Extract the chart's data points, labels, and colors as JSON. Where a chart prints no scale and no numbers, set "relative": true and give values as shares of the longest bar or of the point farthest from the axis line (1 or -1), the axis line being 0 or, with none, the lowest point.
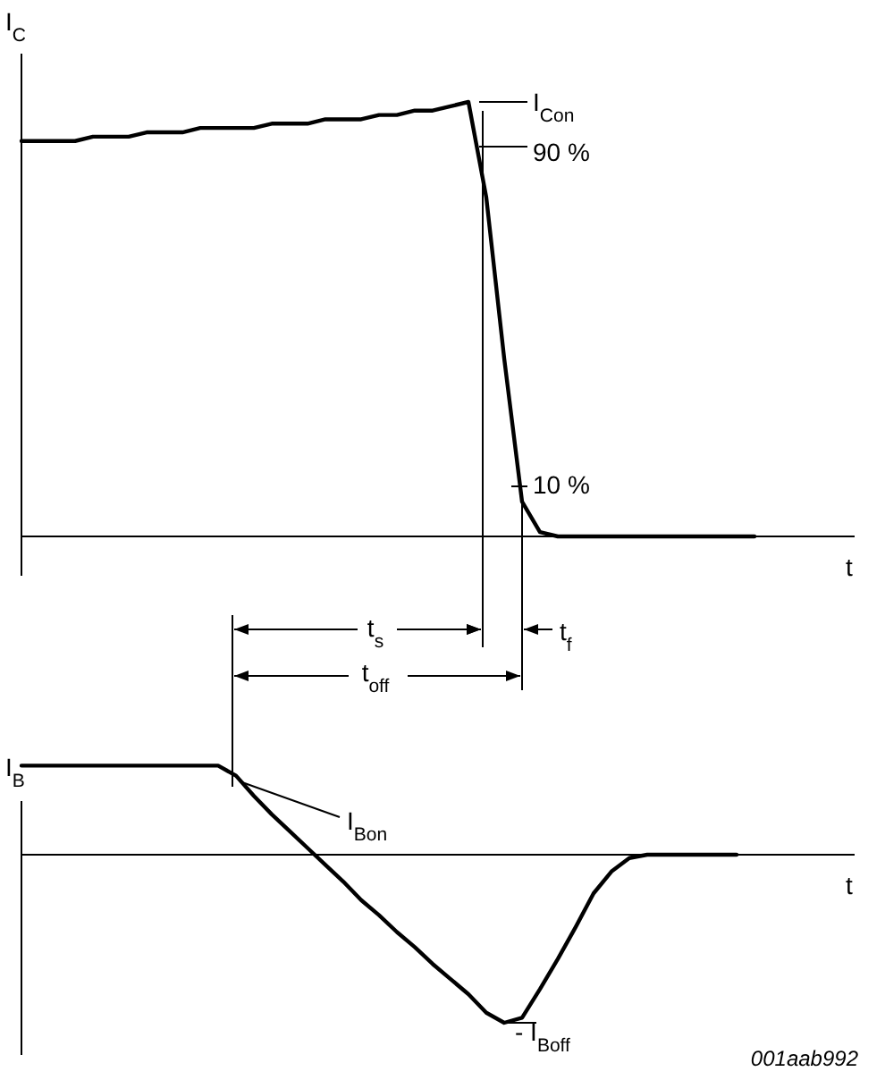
{
  "chart_data": [
    {
      "type": "line",
      "ylabel": "I$_{C}$",
      "xlabel": "t",
      "relative": true,
      "categories": [
        null,
        null,
        null,
        null,
        null,
        null,
        null,
        null,
        null,
        null,
        null,
        null,
        null,
        null,
        null,
        null,
        null,
        null,
        null,
        null,
        null,
        null,
        null,
        null,
        null,
        null,
        null,
        null,
        null,
        null,
        null,
        null,
        null,
        null,
        null,
        null,
        null,
        null,
        null,
        null,
        null,
        null,
        null,
        null,
        null,
        null,
        null
      ],
      "series": [
        {
          "color": "#000000",
          "values": [
            0.91,
            0.91,
            0.91,
            0.91,
            0.92,
            0.92,
            0.92,
            0.93,
            0.93,
            0.93,
            0.94,
            0.94,
            0.94,
            0.94,
            0.95,
            0.95,
            0.95,
            0.96,
            0.96,
            0.96,
            0.97,
            0.97,
            0.98,
            0.98,
            0.99,
            1.0,
            0.78,
            0.41,
            0.08,
            0.01,
            0,
            0,
            0,
            0,
            0,
            0,
            0,
            0,
            0,
            0,
            0,
            0,
            null,
            null,
            null,
            null,
            null
          ]
        }
      ],
      "annotations": [
        "I$_{Con}$",
        "90 %",
        "10 %",
        "t$_{s}$",
        "t$_{off}$",
        "t$_{f}$"
      ]
    },
    {
      "type": "line",
      "ylabel": "I$_{B}$",
      "xlabel": "t",
      "relative": true,
      "categories": [
        null,
        null,
        null,
        null,
        null,
        null,
        null,
        null,
        null,
        null,
        null,
        null,
        null,
        null,
        null,
        null,
        null,
        null,
        null,
        null,
        null,
        null,
        null,
        null,
        null,
        null,
        null,
        null,
        null,
        null,
        null,
        null,
        null,
        null,
        null,
        null,
        null,
        null,
        null,
        null,
        null,
        null,
        null,
        null,
        null,
        null,
        null
      ],
      "series": [
        {
          "color": "#000000",
          "values": [
            0.53,
            0.53,
            0.53,
            0.53,
            0.53,
            0.53,
            0.53,
            0.53,
            0.53,
            0.53,
            0.53,
            0.53,
            0.47,
            0.35,
            0.24,
            0.14,
            0.04,
            -0.06,
            -0.16,
            -0.27,
            -0.36,
            -0.46,
            -0.55,
            -0.65,
            -0.74,
            -0.83,
            -0.94,
            -1.0,
            -0.97,
            -0.8,
            -0.62,
            -0.43,
            -0.23,
            -0.1,
            -0.02,
            0,
            0,
            0,
            0,
            0,
            0,
            null,
            null,
            null,
            null,
            null,
            null
          ]
        }
      ],
      "annotations": [
        "I$_{Bon}$",
        "- I$_{Boff}$",
        "001aab992"
      ]
    }
  ]
}
